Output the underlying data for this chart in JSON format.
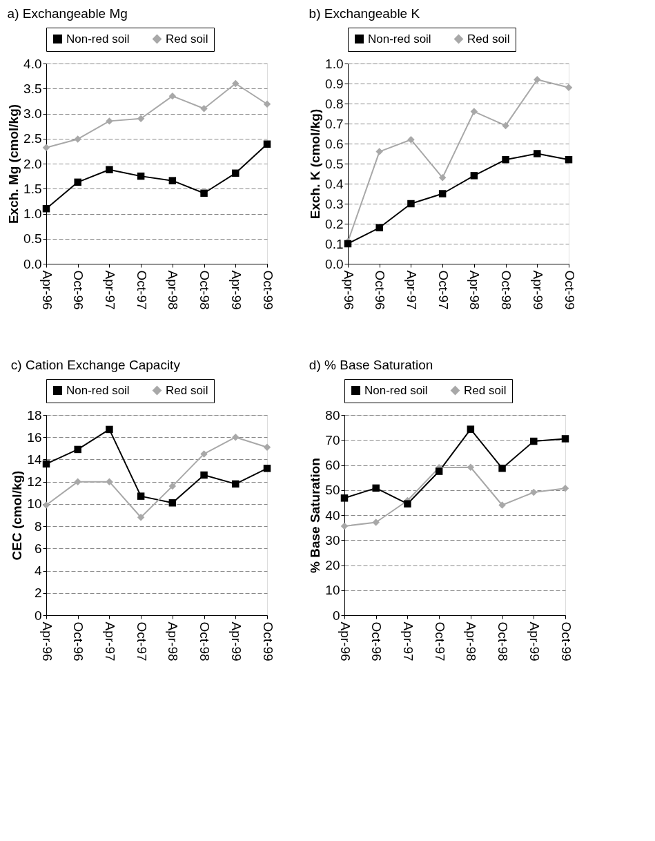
{
  "chart_data": [
    {
      "type": "line",
      "title": "a) Exchangeable Mg",
      "ylabel": "Exch. Mg (cmol/kg)",
      "categories": [
        "Apr-96",
        "Oct-96",
        "Apr-97",
        "Oct-97",
        "Apr-98",
        "Oct-98",
        "Apr-99",
        "Oct-99"
      ],
      "ylim": [
        0,
        4
      ],
      "yticks": [
        {
          "value": 0,
          "label": "0.0"
        },
        {
          "value": 0.5,
          "label": "0.5"
        },
        {
          "value": 1,
          "label": "1.0"
        },
        {
          "value": 1.5,
          "label": "1.5"
        },
        {
          "value": 2,
          "label": "2.0"
        },
        {
          "value": 2.5,
          "label": "2.5"
        },
        {
          "value": 3,
          "label": "3.0"
        },
        {
          "value": 3.5,
          "label": "3.5"
        },
        {
          "value": 4,
          "label": "4.0"
        }
      ],
      "grid": "y",
      "legend": "top",
      "line_style": "solid",
      "series": [
        {
          "name": "Non-red soil",
          "color": "#000000",
          "marker": "square",
          "values": [
            1.1,
            1.63,
            1.88,
            1.75,
            1.66,
            1.41,
            1.81,
            2.39
          ]
        },
        {
          "name": "Red soil",
          "color": "#a8a8a8",
          "marker": "diamond",
          "values": [
            2.32,
            2.49,
            2.85,
            2.9,
            3.35,
            3.1,
            3.6,
            3.19
          ]
        }
      ]
    },
    {
      "type": "line",
      "title": "b) Exchangeable K",
      "ylabel": "Exch. K (cmol/kg)",
      "categories": [
        "Apr-96",
        "Oct-96",
        "Apr-97",
        "Oct-97",
        "Apr-98",
        "Oct-98",
        "Apr-99",
        "Oct-99"
      ],
      "ylim": [
        0,
        1
      ],
      "yticks": [
        {
          "value": 0,
          "label": "0.0"
        },
        0.1,
        0.2,
        0.3,
        0.4,
        0.5,
        0.6,
        0.7,
        0.8,
        0.9,
        {
          "value": 1,
          "label": "1.0"
        }
      ],
      "grid": "y",
      "legend": "top",
      "line_style": "solid",
      "series": [
        {
          "name": "Non-red soil",
          "color": "#000000",
          "marker": "square",
          "values": [
            0.1,
            0.18,
            0.3,
            0.35,
            0.44,
            0.52,
            0.55,
            0.52
          ]
        },
        {
          "name": "Red soil",
          "color": "#a8a8a8",
          "marker": "diamond",
          "values": [
            0.11,
            0.56,
            0.62,
            0.43,
            0.76,
            0.69,
            0.92,
            0.88
          ]
        }
      ]
    },
    {
      "type": "line",
      "title": "c) Cation Exchange Capacity",
      "ylabel": "CEC (cmol/kg)",
      "categories": [
        "Apr-96",
        "Oct-96",
        "Apr-97",
        "Oct-97",
        "Apr-98",
        "Oct-98",
        "Apr-99",
        "Oct-99"
      ],
      "ylim": [
        0,
        18
      ],
      "yticks": [
        0,
        2,
        4,
        6,
        8,
        10,
        12,
        14,
        16,
        18
      ],
      "grid": "y",
      "legend": "top",
      "line_style": "solid",
      "series": [
        {
          "name": "Non-red soil",
          "color": "#000000",
          "marker": "square",
          "values": [
            13.6,
            14.9,
            16.7,
            10.7,
            10.1,
            12.6,
            11.8,
            13.2
          ]
        },
        {
          "name": "Red soil",
          "color": "#a8a8a8",
          "marker": "diamond",
          "values": [
            9.9,
            12.0,
            12.0,
            8.8,
            11.6,
            14.5,
            16.0,
            15.1
          ]
        }
      ]
    },
    {
      "type": "line",
      "title": "d) % Base Saturation",
      "ylabel": "% Base Saturation",
      "categories": [
        "Apr-96",
        "Oct-96",
        "Apr-97",
        "Oct-97",
        "Apr-98",
        "Oct-98",
        "Apr-99",
        "Oct-99"
      ],
      "ylim": [
        0,
        80
      ],
      "yticks": [
        0,
        10,
        20,
        30,
        40,
        50,
        60,
        70,
        80
      ],
      "grid": "y",
      "legend": "top",
      "line_style": "solid",
      "series": [
        {
          "name": "Non-red soil",
          "color": "#000000",
          "marker": "square",
          "values": [
            46.8,
            50.8,
            44.5,
            57.5,
            74.3,
            58.7,
            69.5,
            70.5
          ]
        },
        {
          "name": "Red soil",
          "color": "#a8a8a8",
          "marker": "diamond",
          "values": [
            35.6,
            37.1,
            45.8,
            59.0,
            59.1,
            44.0,
            49.1,
            50.7
          ]
        }
      ]
    }
  ]
}
